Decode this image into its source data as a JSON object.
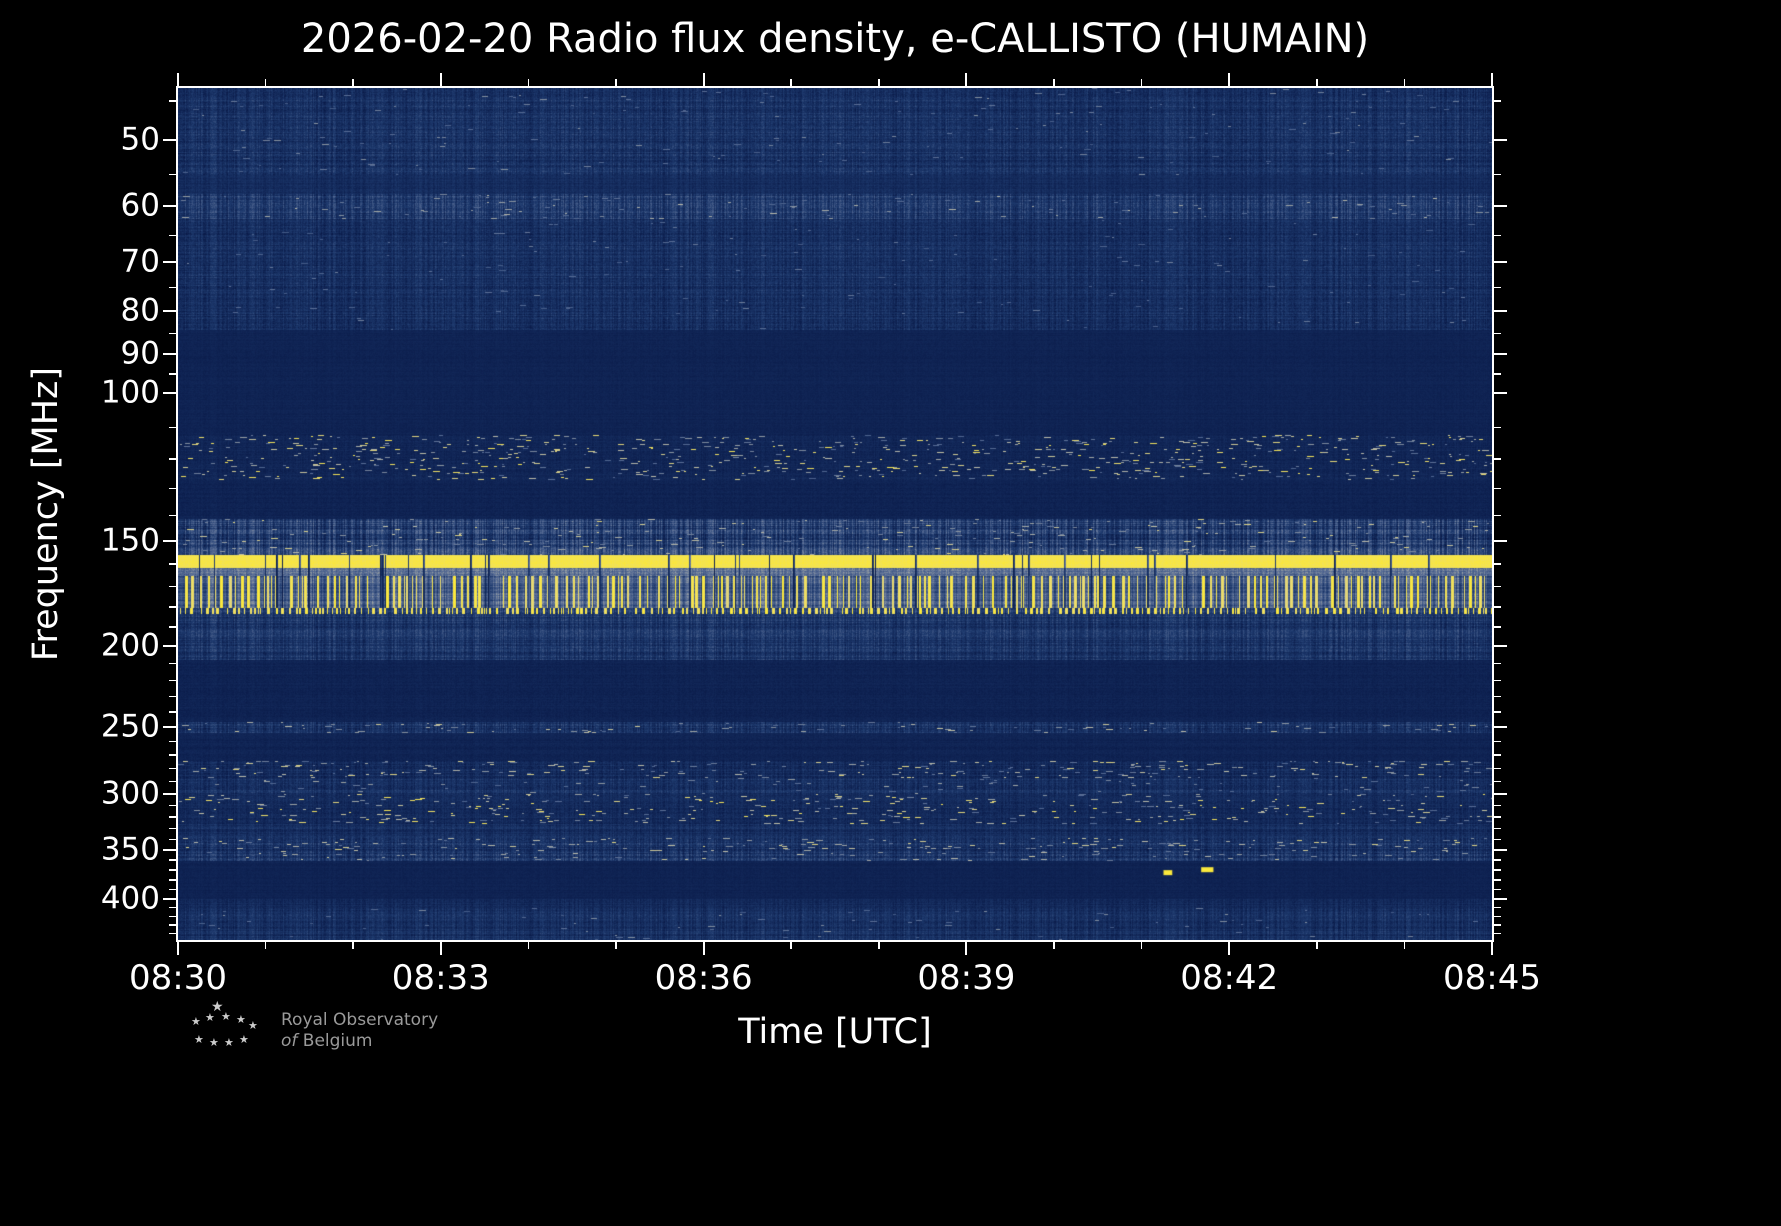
{
  "title": "2026-02-20 Radio flux density, e-CALLISTO (HUMAIN)",
  "colors": {
    "background": "#000000",
    "foreground": "#ffffff",
    "spine": "#ffffff",
    "footer_text": "#9a9a9a",
    "logo_star": "#cccccc"
  },
  "axes": {
    "xlabel": "Time [UTC]",
    "ylabel": "Frequency [MHz]",
    "x_tick_labels": [
      "08:30",
      "08:33",
      "08:36",
      "08:39",
      "08:42",
      "08:45"
    ],
    "y_tick_labels": [
      "50",
      "60",
      "70",
      "80",
      "90",
      "100",
      "150",
      "200",
      "250",
      "300",
      "350",
      "400"
    ]
  },
  "footer": {
    "logo_glyph": "★",
    "logo_stars": [
      [
        26,
        0,
        14
      ],
      [
        6,
        16,
        11
      ],
      [
        20,
        12,
        11
      ],
      [
        36,
        11,
        11
      ],
      [
        51,
        14,
        11
      ],
      [
        63,
        20,
        11
      ],
      [
        9,
        34,
        11
      ],
      [
        24,
        37,
        11
      ],
      [
        39,
        37,
        11
      ],
      [
        54,
        34,
        11
      ]
    ],
    "org_line1": "Royal Observatory",
    "org_line2_of": "of",
    "org_line2_name": "Belgium"
  },
  "chart_data": {
    "type": "heatmap",
    "title": "2026-02-20 Radio flux density, e-CALLISTO (HUMAIN)",
    "xlabel": "Time [UTC]",
    "ylabel": "Frequency [MHz]",
    "date": "2026-02-20",
    "instrument": "e-CALLISTO",
    "station": "HUMAIN",
    "time_start_utc": "08:30",
    "time_end_utc": "08:45",
    "x_span_min": 15,
    "x_major_ticks_min": [
      0,
      3,
      6,
      9,
      12,
      15
    ],
    "x_minor_step_min": 1,
    "y_scale": "log",
    "y_range_mhz": [
      43.4,
      448
    ],
    "y_major_ticks_mhz": [
      50,
      60,
      70,
      80,
      90,
      100,
      150,
      200,
      250,
      300,
      350,
      400
    ],
    "legend": "none",
    "grid": "off",
    "colormap_stops": [
      {
        "v": 0.0,
        "color": "#081846"
      },
      {
        "v": 0.3,
        "color": "#1e3a6e"
      },
      {
        "v": 0.55,
        "color": "#5a6e96"
      },
      {
        "v": 0.75,
        "color": "#bdbdaa"
      },
      {
        "v": 0.88,
        "color": "#ebdc6e"
      },
      {
        "v": 1.0,
        "color": "#fae83c"
      }
    ],
    "content_note": "No solar radio burst visible; spectrum dominated by horizontal terrestrial RFI/noise bands",
    "bands": [
      {
        "f": [
          43.4,
          55
        ],
        "base": 0.22,
        "noise": 0.16,
        "streak": 0.55,
        "speckle": 0.0015,
        "speckle_int": [
          0.45,
          0.65
        ],
        "desc": "broadband noise 44-55 MHz"
      },
      {
        "f": [
          55,
          58
        ],
        "base": 0.17,
        "noise": 0.1,
        "streak": 0.5,
        "desc": "quieter gap"
      },
      {
        "f": [
          58,
          62
        ],
        "base": 0.27,
        "noise": 0.2,
        "streak": 0.65,
        "speckle": 0.004,
        "speckle_int": [
          0.5,
          0.75
        ],
        "desc": "interference band ~60 MHz"
      },
      {
        "f": [
          62,
          84
        ],
        "base": 0.2,
        "noise": 0.15,
        "streak": 0.55,
        "speckle": 0.001,
        "speckle_int": [
          0.45,
          0.6
        ],
        "desc": "broadband noise 62-84 MHz"
      },
      {
        "f": [
          84,
          112
        ],
        "base": 0.1,
        "noise": 0.04,
        "streak": 0.3,
        "desc": "quiet dark band 84-112 MHz"
      },
      {
        "f": [
          112,
          127
        ],
        "base": 0.12,
        "noise": 0.07,
        "streak": 0.4,
        "speckle": 0.012,
        "speckle_int": [
          0.5,
          0.95
        ],
        "desc": "aeronautical band sporadic speckle"
      },
      {
        "f": [
          127,
          141
        ],
        "base": 0.1,
        "noise": 0.05,
        "streak": 0.3,
        "desc": "quiet dark band"
      },
      {
        "f": [
          141,
          156
        ],
        "base": 0.3,
        "noise": 0.24,
        "streak": 0.7,
        "speckle": 0.006,
        "speckle_int": [
          0.55,
          0.85
        ],
        "desc": "noisy band ~150 MHz"
      },
      {
        "f": [
          156,
          161.5
        ],
        "base": 0.96,
        "noise": 0.04,
        "streak": 0.3,
        "dropouts": true,
        "desc": "strong continuous RFI line (bright yellow band ~158 MHz)"
      },
      {
        "f": [
          161.5,
          165
        ],
        "base": 0.55,
        "noise": 0.12,
        "streak": 0.5,
        "dropouts": true,
        "desc": "pale band below yellow line"
      },
      {
        "f": [
          165,
          180
        ],
        "base": 0.45,
        "noise": 0.18,
        "streak": 0.75,
        "bursts": 0.3,
        "burst_int": [
          0.85,
          1.0
        ],
        "dropouts": true,
        "desc": "bursty RFI band ~170 MHz with dense yellow vertical streaks"
      },
      {
        "f": [
          180,
          183
        ],
        "base": 0.3,
        "noise": 0.18,
        "streak": 0.6,
        "bursts": 0.45,
        "burst_int": [
          0.9,
          1.0
        ],
        "desc": "dashed yellow RFI line ~182 MHz"
      },
      {
        "f": [
          183,
          208
        ],
        "base": 0.24,
        "noise": 0.17,
        "streak": 0.6,
        "desc": "moderate noise 183-208 MHz"
      },
      {
        "f": [
          208,
          246
        ],
        "base": 0.1,
        "noise": 0.05,
        "streak": 0.3,
        "desc": "quiet dark band"
      },
      {
        "f": [
          246,
          254
        ],
        "base": 0.22,
        "noise": 0.18,
        "streak": 0.6,
        "speckle": 0.008,
        "speckle_int": [
          0.5,
          0.8
        ],
        "desc": "speckled line ~250 MHz"
      },
      {
        "f": [
          254,
          274
        ],
        "base": 0.1,
        "noise": 0.05,
        "streak": 0.3,
        "desc": "quiet dark band"
      },
      {
        "f": [
          274,
          287
        ],
        "base": 0.17,
        "noise": 0.13,
        "streak": 0.5,
        "speckle": 0.012,
        "speckle_int": [
          0.5,
          0.85
        ],
        "desc": "speckled band ~280 MHz"
      },
      {
        "f": [
          287,
          300
        ],
        "base": 0.22,
        "noise": 0.15,
        "streak": 0.55,
        "speckle": 0.003,
        "speckle_int": [
          0.5,
          0.7
        ],
        "desc": "moderate noise ~290 MHz"
      },
      {
        "f": [
          300,
          326
        ],
        "base": 0.15,
        "noise": 0.11,
        "streak": 0.45,
        "speckle": 0.01,
        "speckle_int": [
          0.5,
          0.95
        ],
        "desc": "speckled band 300-325 MHz with occasional bright dots"
      },
      {
        "f": [
          326,
          338
        ],
        "base": 0.19,
        "noise": 0.13,
        "streak": 0.5,
        "desc": "moderate noise"
      },
      {
        "f": [
          338,
          350
        ],
        "base": 0.22,
        "noise": 0.17,
        "streak": 0.55,
        "speckle": 0.01,
        "speckle_int": [
          0.55,
          0.85
        ],
        "desc": "speckled dashed line ~350 MHz"
      },
      {
        "f": [
          350,
          360
        ],
        "base": 0.25,
        "noise": 0.19,
        "streak": 0.6,
        "speckle": 0.008,
        "speckle_int": [
          0.55,
          0.8
        ],
        "desc": "pale speckle band ~355 MHz"
      },
      {
        "f": [
          360,
          377
        ],
        "base": 0.1,
        "noise": 0.04,
        "streak": 0.3,
        "desc": "quiet dark band"
      },
      {
        "f": [
          377,
          400
        ],
        "base": 0.09,
        "noise": 0.04,
        "streak": 0.3,
        "desc": "quiet dark band"
      },
      {
        "f": [
          400,
          410
        ],
        "base": 0.16,
        "noise": 0.11,
        "streak": 0.5,
        "desc": "faint noise line ~405 MHz"
      },
      {
        "f": [
          410,
          448
        ],
        "base": 0.2,
        "noise": 0.15,
        "streak": 0.6,
        "speckle": 0.002,
        "speckle_int": [
          0.45,
          0.65
        ],
        "desc": "bottom noise band"
      }
    ],
    "events": [
      {
        "t_min": 11.3,
        "f_mhz": 372,
        "w_min": 0.1,
        "int": 1.0,
        "desc": "isolated bright yellow RFI dash ~08:41"
      },
      {
        "t_min": 11.75,
        "f_mhz": 369,
        "w_min": 0.14,
        "int": 1.0,
        "desc": "isolated bright yellow RFI dash ~08:42"
      }
    ]
  }
}
